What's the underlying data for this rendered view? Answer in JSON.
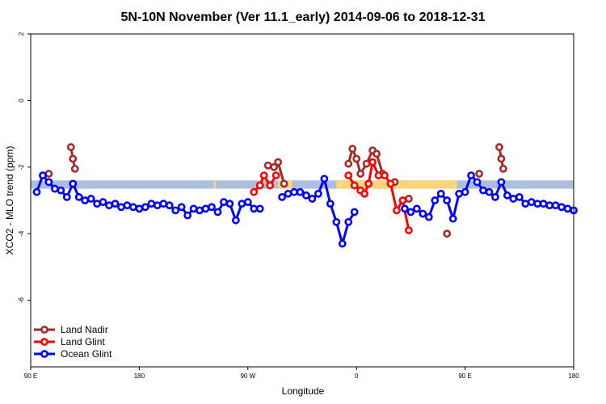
{
  "chart_data": {
    "type": "line",
    "title": "5N-10N November (Ver 11.1_early)   2014-09-06 to 2018-12-31",
    "xlabel": "Longitude",
    "ylabel": "XCO2 - MLO trend (ppm)",
    "xlim": [
      -90,
      180
    ],
    "ylim": [
      -8,
      2
    ],
    "x_ticks": [
      {
        "value": -90,
        "label": "90 E"
      },
      {
        "value": -36,
        "label": "180"
      },
      {
        "value": 18,
        "label": "90 W"
      },
      {
        "value": 72,
        "label": "0"
      },
      {
        "value": 126,
        "label": "90 E"
      },
      {
        "value": 180,
        "label": "180"
      }
    ],
    "y_ticks": [
      {
        "value": 2,
        "label": "2"
      },
      {
        "value": 0,
        "label": "0"
      },
      {
        "value": -2,
        "label": "-2"
      },
      {
        "value": -4,
        "label": "-4"
      },
      {
        "value": -6,
        "label": "-6"
      }
    ],
    "grid": false,
    "legend_position": "bottom-left",
    "band": {
      "y_low": -2.65,
      "y_high": -2.4,
      "color": "#a9bfdc"
    },
    "land_band_segments": [
      {
        "x_start": 1,
        "x_end": 2,
        "color": "#f9d67a"
      },
      {
        "x_start": 33,
        "x_end": 40,
        "color": "#f9d67a"
      },
      {
        "x_start": 62,
        "x_end": 121,
        "color": "#f9d67a"
      },
      {
        "x_start": 117,
        "x_end": 118,
        "color": "#f9d67a"
      },
      {
        "x_start": 121,
        "x_end": 122,
        "color": "#f9d67a"
      }
    ],
    "series": [
      {
        "name": "Land Nadir",
        "color": "#a52a2a",
        "points": [
          [
            -81,
            -2.2
          ],
          [
            -70,
            -1.4
          ],
          [
            -69,
            -1.75
          ],
          [
            -68,
            -2.05
          ],
          [
            28,
            -1.95
          ],
          [
            31,
            -2.0
          ],
          [
            33,
            -1.85
          ],
          [
            36,
            -2.5
          ],
          [
            68,
            -1.9
          ],
          [
            70,
            -1.45
          ],
          [
            72,
            -1.75
          ],
          [
            74,
            -2.2
          ],
          [
            77,
            -1.9
          ],
          [
            80,
            -1.5
          ],
          [
            82,
            -1.6
          ],
          [
            85,
            -2.2
          ],
          [
            91,
            -2.45
          ],
          [
            98,
            -2.95
          ],
          [
            117,
            -4.0
          ],
          [
            133,
            -2.2
          ],
          [
            143,
            -1.4
          ],
          [
            144,
            -1.75
          ],
          [
            145,
            -2.05
          ]
        ]
      },
      {
        "name": "Land Glint",
        "color": "#ff0000",
        "points": [
          [
            21,
            -2.75
          ],
          [
            24,
            -2.55
          ],
          [
            26,
            -2.25
          ],
          [
            29,
            -2.55
          ],
          [
            32,
            -2.25
          ],
          [
            68,
            -2.25
          ],
          [
            71,
            -2.55
          ],
          [
            74,
            -2.7
          ],
          [
            76,
            -2.8
          ],
          [
            78,
            -2.5
          ],
          [
            80,
            -1.85
          ],
          [
            83,
            -2.25
          ],
          [
            86,
            -2.25
          ],
          [
            89,
            -2.5
          ],
          [
            92,
            -3.3
          ],
          [
            95,
            -3.0
          ],
          [
            98,
            -3.9
          ]
        ]
      },
      {
        "name": "Ocean Glint",
        "color": "#0000ff",
        "points": [
          [
            -87,
            -2.75
          ],
          [
            -84,
            -2.25
          ],
          [
            -81,
            -2.45
          ],
          [
            -78,
            -2.65
          ],
          [
            -75,
            -2.7
          ],
          [
            -72,
            -2.9
          ],
          [
            -69,
            -2.5
          ],
          [
            -66,
            -2.9
          ],
          [
            -63,
            -3.0
          ],
          [
            -60,
            -2.95
          ],
          [
            -57,
            -3.1
          ],
          [
            -54,
            -3.05
          ],
          [
            -51,
            -3.15
          ],
          [
            -48,
            -3.1
          ],
          [
            -45,
            -3.2
          ],
          [
            -42,
            -3.15
          ],
          [
            -39,
            -3.2
          ],
          [
            -36,
            -3.25
          ],
          [
            -33,
            -3.2
          ],
          [
            -30,
            -3.1
          ],
          [
            -27,
            -3.15
          ],
          [
            -24,
            -3.1
          ],
          [
            -21,
            -3.15
          ],
          [
            -18,
            -3.3
          ],
          [
            -15,
            -3.2
          ],
          [
            -12,
            -3.45
          ],
          [
            -9,
            -3.25
          ],
          [
            -6,
            -3.3
          ],
          [
            -3,
            -3.25
          ],
          [
            0,
            -3.2
          ],
          [
            3,
            -3.35
          ],
          [
            6,
            -3.05
          ],
          [
            9,
            -3.1
          ],
          [
            12,
            -3.6
          ],
          [
            15,
            -3.1
          ],
          [
            18,
            -3.05
          ],
          [
            21,
            -3.25
          ],
          [
            24,
            -3.25
          ],
          [
            35,
            -2.9
          ],
          [
            38,
            -2.8
          ],
          [
            41,
            -2.75
          ],
          [
            44,
            -2.75
          ],
          [
            47,
            -2.85
          ],
          [
            50,
            -2.95
          ],
          [
            53,
            -2.8
          ],
          [
            56,
            -2.35
          ],
          [
            59,
            -3.1
          ],
          [
            62,
            -3.65
          ],
          [
            65,
            -4.3
          ],
          [
            68,
            -3.65
          ],
          [
            71,
            -3.35
          ],
          [
            96,
            -3.25
          ],
          [
            99,
            -3.35
          ],
          [
            102,
            -3.25
          ],
          [
            105,
            -3.4
          ],
          [
            108,
            -3.5
          ],
          [
            111,
            -3.0
          ],
          [
            114,
            -2.8
          ],
          [
            117,
            -3.0
          ],
          [
            120,
            -3.55
          ],
          [
            123,
            -2.8
          ],
          [
            126,
            -2.75
          ],
          [
            129,
            -2.25
          ],
          [
            132,
            -2.45
          ],
          [
            135,
            -2.7
          ],
          [
            138,
            -2.75
          ],
          [
            141,
            -2.9
          ],
          [
            144,
            -2.45
          ],
          [
            147,
            -2.85
          ],
          [
            150,
            -2.95
          ],
          [
            153,
            -2.9
          ],
          [
            156,
            -3.1
          ],
          [
            159,
            -3.05
          ],
          [
            162,
            -3.1
          ],
          [
            165,
            -3.1
          ],
          [
            168,
            -3.15
          ],
          [
            171,
            -3.15
          ],
          [
            174,
            -3.2
          ],
          [
            177,
            -3.25
          ],
          [
            180,
            -3.3
          ]
        ]
      }
    ]
  }
}
